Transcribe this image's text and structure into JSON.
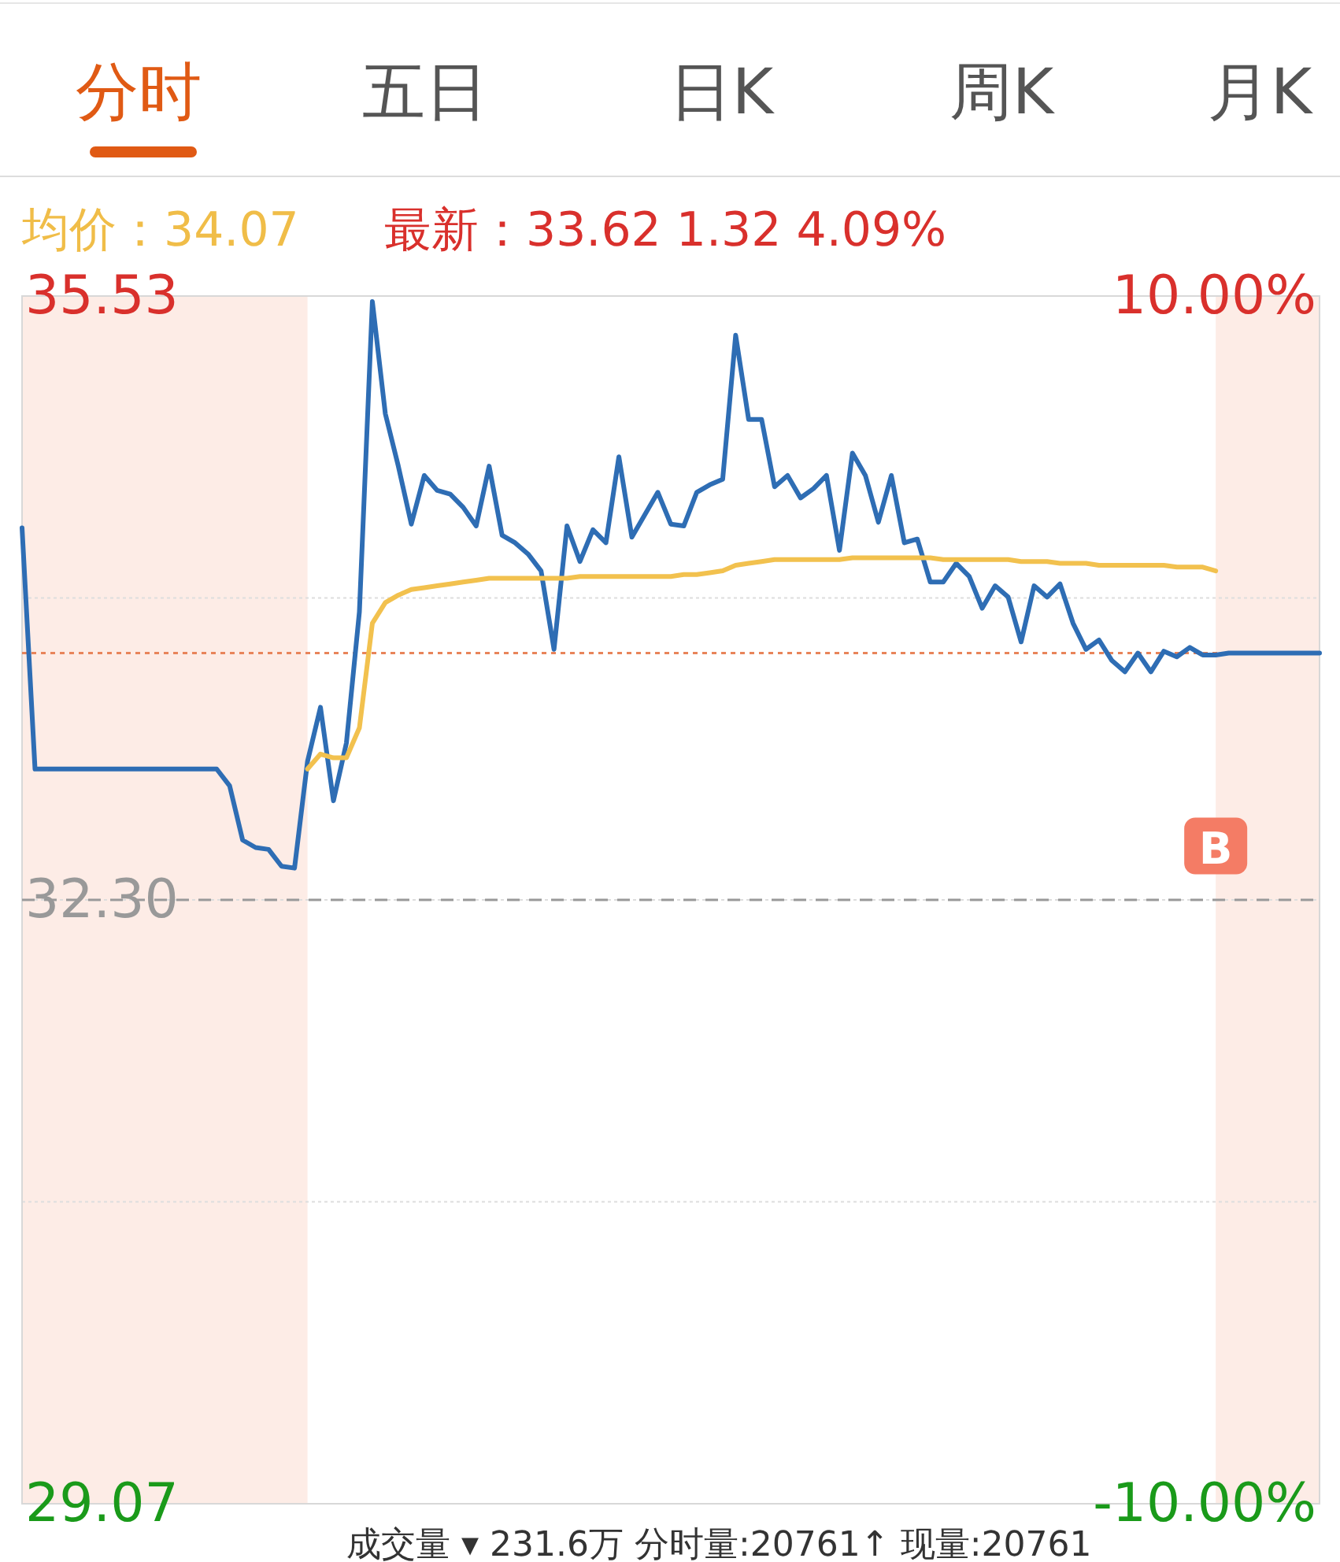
{
  "chart_data": {
    "type": "line",
    "annotations": [
      "分时",
      "五日",
      "日K",
      "周K",
      "月K",
      "均价：34.07",
      "最新：33.62  1.32  4.09%",
      "成交量 ▾  231.6万   分时量:20761↑   现量:20761",
      {
        "text": "B",
        "y": 32.58
      }
    ],
    "categories": [
      null,
      null,
      null,
      null,
      null,
      null,
      null,
      null,
      null,
      null,
      null,
      null,
      null,
      null,
      null,
      null,
      null,
      null,
      null,
      null,
      null,
      null,
      null,
      null,
      null,
      null,
      null,
      null,
      null,
      null,
      null,
      null,
      null,
      null,
      null,
      null,
      null,
      null,
      null,
      null,
      null,
      null,
      null,
      null,
      null,
      null,
      null,
      null,
      null,
      null,
      null,
      null,
      null,
      null,
      null,
      null,
      null,
      null,
      null,
      null,
      null,
      null,
      null,
      null,
      null,
      null,
      null,
      null,
      null,
      null,
      null,
      null,
      null,
      null,
      null,
      null,
      null,
      null,
      null,
      null,
      null,
      null,
      null,
      null,
      null,
      null,
      null,
      null,
      null,
      null,
      null,
      null,
      null,
      null,
      null,
      null,
      null,
      null,
      null,
      null,
      null
    ],
    "series": [
      {
        "color": "#2e6db4",
        "values": [
          34.29,
          33.0,
          33.0,
          33.0,
          33.0,
          33.0,
          33.0,
          33.0,
          33.0,
          33.0,
          33.0,
          33.0,
          33.0,
          33.0,
          33.0,
          33.0,
          32.91,
          32.62,
          32.58,
          32.57,
          32.48,
          32.47,
          33.04,
          33.33,
          32.83,
          33.14,
          33.84,
          35.5,
          34.9,
          34.62,
          34.31,
          34.57,
          34.49,
          34.47,
          34.4,
          34.3,
          34.62,
          34.25,
          34.21,
          34.15,
          34.06,
          33.64,
          34.3,
          34.11,
          34.28,
          34.21,
          34.67,
          34.24,
          34.36,
          34.48,
          34.31,
          34.3,
          34.48,
          34.52,
          34.55,
          35.32,
          34.87,
          34.87,
          34.51,
          34.57,
          34.45,
          34.5,
          34.57,
          34.17,
          34.69,
          34.57,
          34.32,
          34.57,
          34.21,
          34.23,
          34.0,
          34.0,
          34.1,
          34.03,
          33.86,
          33.98,
          33.92,
          33.68,
          33.98,
          33.92,
          33.99,
          33.78,
          33.64,
          33.69,
          33.58,
          33.52,
          33.62,
          33.52,
          33.63,
          33.6,
          33.65,
          33.61,
          33.61,
          33.62,
          33.62,
          33.62,
          33.62,
          33.62,
          33.62,
          33.62,
          33.62
        ]
      },
      {
        "color": "#f2c14e",
        "values": [
          null,
          null,
          null,
          null,
          null,
          null,
          null,
          null,
          null,
          null,
          null,
          null,
          null,
          null,
          null,
          null,
          null,
          null,
          null,
          null,
          null,
          null,
          33.0,
          33.08,
          33.06,
          33.06,
          33.22,
          33.78,
          33.89,
          33.93,
          33.96,
          33.97,
          33.98,
          33.99,
          34.0,
          34.01,
          34.02,
          34.02,
          34.02,
          34.02,
          34.02,
          34.02,
          34.02,
          34.03,
          34.03,
          34.03,
          34.03,
          34.03,
          34.03,
          34.03,
          34.03,
          34.04,
          34.04,
          34.05,
          34.06,
          34.09,
          34.1,
          34.11,
          34.12,
          34.12,
          34.12,
          34.12,
          34.12,
          34.12,
          34.13,
          34.13,
          34.13,
          34.13,
          34.13,
          34.13,
          34.13,
          34.12,
          34.12,
          34.12,
          34.12,
          34.12,
          34.12,
          34.11,
          34.11,
          34.11,
          34.1,
          34.1,
          34.1,
          34.09,
          34.09,
          34.09,
          34.09,
          34.09,
          34.09,
          34.08,
          34.08,
          34.08,
          34.06,
          null,
          null,
          null,
          null,
          null,
          null,
          null,
          null
        ]
      }
    ],
    "ylim": [
      29.07,
      35.53
    ],
    "yticks": [
      35.53,
      {
        "value": 33.915,
        "label": null
      },
      {
        "value": 32.3,
        "label": "32.30"
      },
      {
        "value": 30.685,
        "label": null
      },
      29.07
    ],
    "y2lim": [
      -10,
      10
    ],
    "y2ticks": [
      {
        "value": 10,
        "label": "10.00%"
      },
      {
        "value": -10,
        "label": "-10.00%"
      }
    ],
    "grid": "y",
    "line_style": "solid",
    "ref_lines": [
      {
        "axis": "y",
        "value": 32.3,
        "color": "#999999",
        "line_style": "dashed"
      },
      {
        "axis": "y",
        "value": 33.62,
        "color": "#e8845a",
        "line_style": "dotted"
      }
    ]
  }
}
